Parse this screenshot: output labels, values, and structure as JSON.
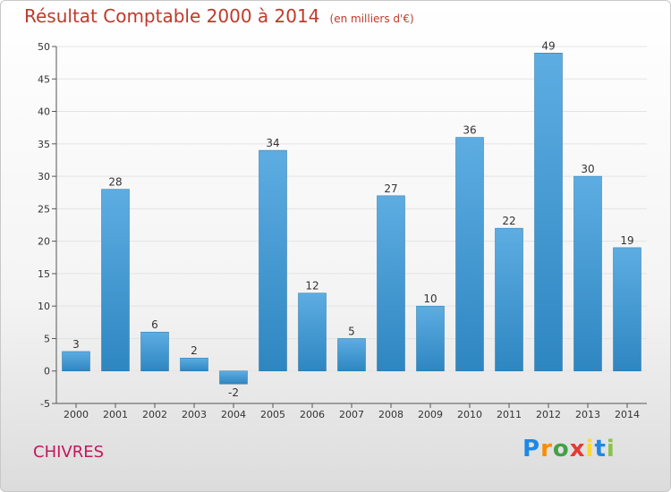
{
  "header": {
    "title": "Résultat Comptable 2000 à 2014",
    "subtitle": "(en milliers d'€)"
  },
  "footer": {
    "commune": "CHIVRES",
    "brand": [
      "P",
      "r",
      "o",
      "x",
      "i",
      "t",
      "i"
    ],
    "brand_colors": [
      "#1e88e5",
      "#fb8c00",
      "#43a047",
      "#e53935",
      "#fdd835",
      "#1e88e5",
      "#8bc34a"
    ]
  },
  "colors": {
    "bar_light": "#5dade2",
    "bar_dark": "#2e86c1",
    "title": "#c0392b",
    "commune": "#c2185b"
  },
  "chart_data": {
    "type": "bar",
    "categories": [
      "2000",
      "2001",
      "2002",
      "2003",
      "2004",
      "2005",
      "2006",
      "2007",
      "2008",
      "2009",
      "2010",
      "2011",
      "2012",
      "2013",
      "2014"
    ],
    "values": [
      3,
      28,
      6,
      2,
      -2,
      34,
      12,
      5,
      27,
      10,
      36,
      22,
      49,
      30,
      19
    ],
    "title": "Résultat Comptable 2000 à 2014",
    "subtitle": "(en milliers d'€)",
    "xlabel": "",
    "ylabel": "",
    "ylim": [
      -5,
      50
    ],
    "yticks": [
      -5,
      0,
      5,
      10,
      15,
      20,
      25,
      30,
      35,
      40,
      45,
      50
    ],
    "grid": true,
    "legend": "none"
  }
}
